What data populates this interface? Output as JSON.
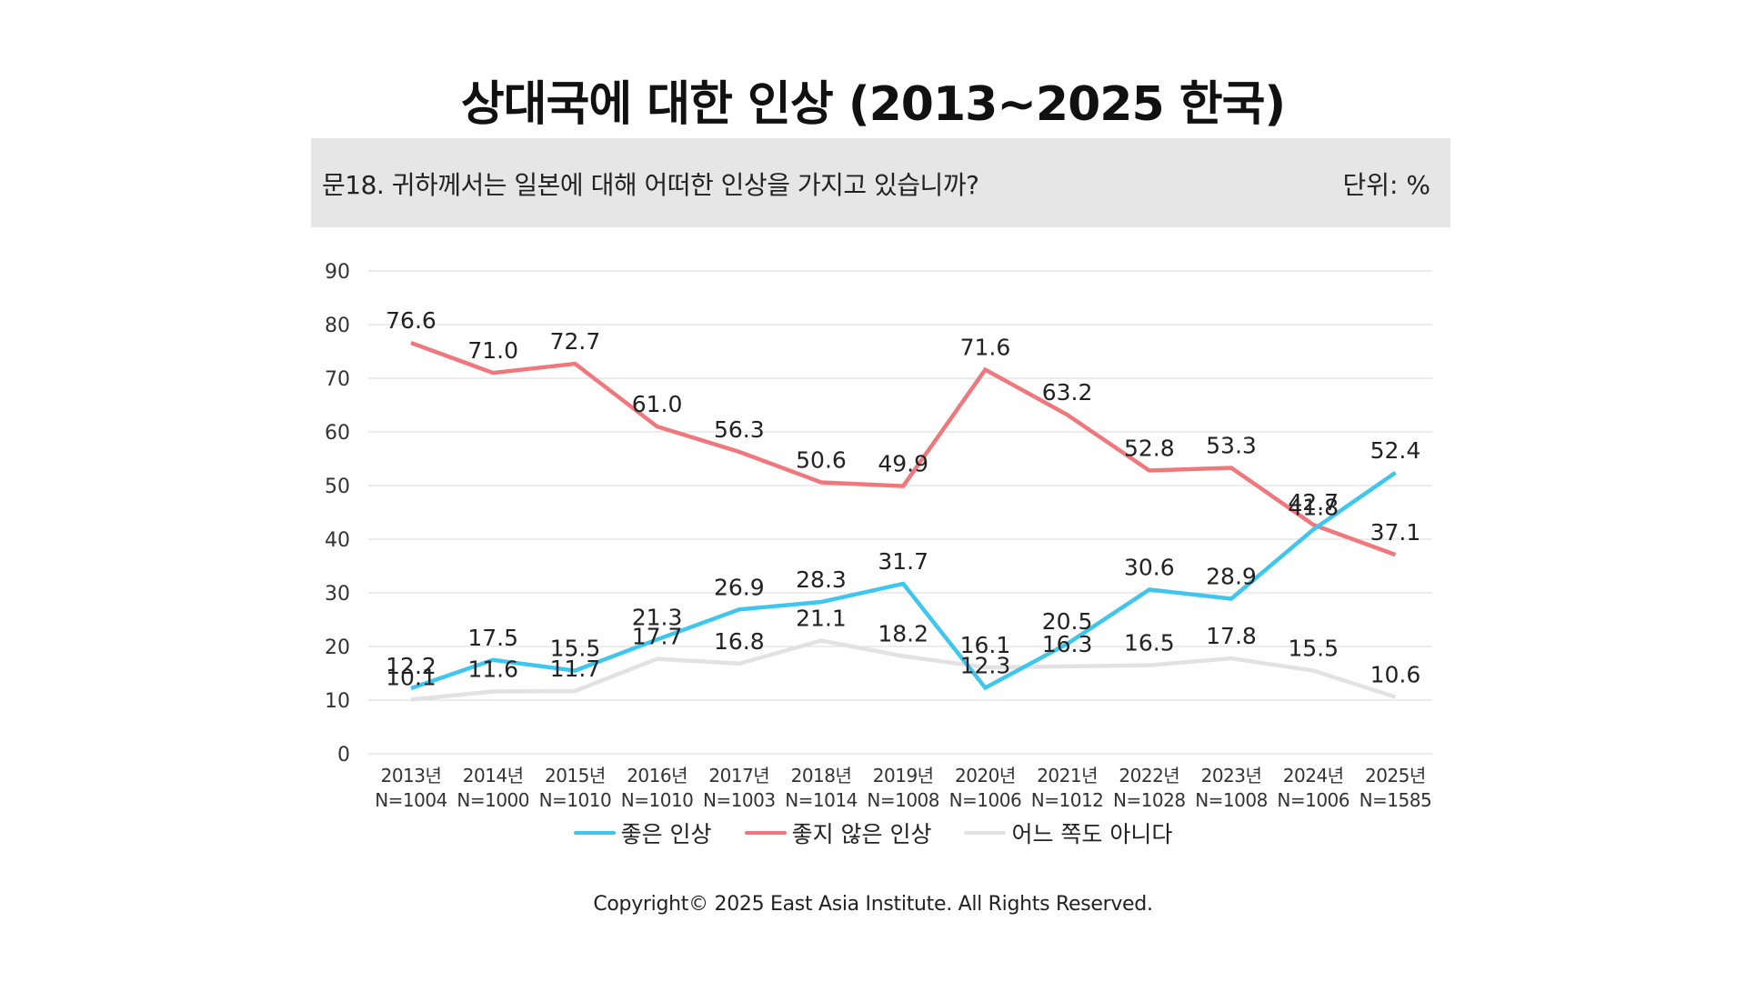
{
  "chart_data": {
    "type": "line",
    "title": "상대국에 대한 인상 (2013~2025 한국)",
    "question": "문18. 귀하께서는 일본에 대해 어떠한 인상을 가지고 있습니까?",
    "unit": "단위: %",
    "categories": [
      "2013년",
      "2014년",
      "2015년",
      "2016년",
      "2017년",
      "2018년",
      "2019년",
      "2020년",
      "2021년",
      "2022년",
      "2023년",
      "2024년",
      "2025년"
    ],
    "sample_sizes": [
      "N=1004",
      "N=1000",
      "N=1010",
      "N=1010",
      "N=1003",
      "N=1014",
      "N=1008",
      "N=1006",
      "N=1012",
      "N=1028",
      "N=1008",
      "N=1006",
      "N=1585"
    ],
    "series": [
      {
        "name": "좋은 인상",
        "color": "#3ec6ee",
        "values": [
          12.2,
          17.5,
          15.5,
          21.3,
          26.9,
          28.3,
          31.7,
          12.3,
          20.5,
          30.6,
          28.9,
          41.8,
          52.4
        ]
      },
      {
        "name": "좋지 않은 인상",
        "color": "#f0787d",
        "values": [
          76.6,
          71.0,
          72.7,
          61.0,
          56.3,
          50.6,
          49.9,
          71.6,
          63.2,
          52.8,
          53.3,
          42.7,
          37.1
        ]
      },
      {
        "name": "어느 쪽도 아니다",
        "color": "#e2e2e2",
        "values": [
          10.1,
          11.6,
          11.7,
          17.7,
          16.8,
          21.1,
          18.2,
          16.1,
          16.3,
          16.5,
          17.8,
          15.5,
          10.6
        ]
      }
    ],
    "ylim": [
      0,
      90
    ],
    "yticks": [
      0,
      10,
      20,
      30,
      40,
      50,
      60,
      70,
      80,
      90
    ],
    "grid": true,
    "legend": "bottom"
  },
  "copyright": "Copyright© 2025 East Asia Institute. All Rights Reserved."
}
